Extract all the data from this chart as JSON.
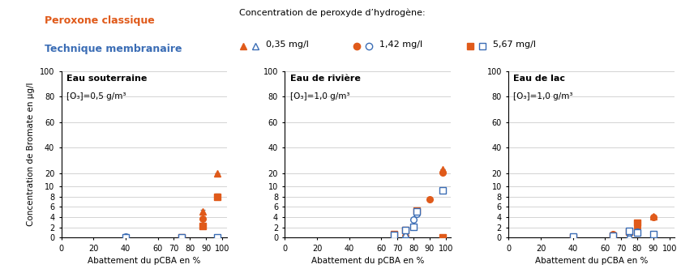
{
  "panels": [
    {
      "title": "Eau souterraine",
      "subtitle": "[O₃]=0,5 g/m³",
      "data": {
        "orange_triangle": {
          "x": [
            75,
            88,
            97
          ],
          "y": [
            0.05,
            5.1,
            20.0
          ],
          "yerr": [
            0,
            0.35,
            0
          ]
        },
        "orange_circle": {
          "x": [
            75,
            88
          ],
          "y": [
            0.05,
            3.6
          ],
          "yerr": [
            0,
            0
          ]
        },
        "orange_square": {
          "x": [
            75,
            88,
            97
          ],
          "y": [
            0.05,
            2.2,
            8.0
          ],
          "yerr": [
            0.05,
            0.25,
            0.55
          ]
        },
        "blue_triangle": {
          "x": [
            40,
            75
          ],
          "y": [
            0.08,
            0.05
          ],
          "yerr": [
            0,
            0
          ]
        },
        "blue_circle": {
          "x": [
            40,
            75
          ],
          "y": [
            0.12,
            0.05
          ],
          "yerr": [
            0,
            0
          ]
        },
        "blue_square": {
          "x": [
            40,
            75,
            97
          ],
          "y": [
            0.05,
            0.05,
            0.1
          ],
          "yerr": [
            0,
            0,
            0
          ]
        }
      }
    },
    {
      "title": "Eau de rivière",
      "subtitle": "[O₃]=1,0 g/m³",
      "data": {
        "orange_triangle": {
          "x": [
            68,
            75,
            98
          ],
          "y": [
            0.35,
            1.0,
            23.0
          ],
          "yerr": [
            0,
            0,
            0
          ]
        },
        "orange_circle": {
          "x": [
            68,
            80,
            90,
            98
          ],
          "y": [
            0.5,
            2.1,
            7.5,
            21.0
          ],
          "yerr": [
            0,
            0,
            0,
            0
          ]
        },
        "orange_square": {
          "x": [
            68,
            75,
            82,
            98
          ],
          "y": [
            0.6,
            1.4,
            5.2,
            0
          ],
          "yerr": [
            0.1,
            0.2,
            0.35,
            0
          ]
        },
        "blue_triangle": {
          "x": [
            68,
            75
          ],
          "y": [
            0.25,
            0.7
          ],
          "yerr": [
            0,
            0
          ]
        },
        "blue_circle": {
          "x": [
            68,
            75,
            80,
            82,
            98
          ],
          "y": [
            0.3,
            1.5,
            3.5,
            4.6,
            9.2
          ],
          "yerr": [
            0.05,
            0.2,
            0,
            0,
            0.55
          ]
        },
        "blue_square": {
          "x": [
            68,
            75,
            80,
            82,
            98
          ],
          "y": [
            0.5,
            1.5,
            2.1,
            5.1,
            9.2
          ],
          "yerr": [
            0.15,
            0.3,
            0.3,
            0.3,
            0.55
          ]
        }
      }
    },
    {
      "title": "Eau de lac",
      "subtitle": "[O₃]=1,0 g/m³",
      "data": {
        "orange_triangle": {
          "x": [
            40,
            65,
            90
          ],
          "y": [
            0.05,
            0.5,
            4.1
          ],
          "yerr": [
            0,
            0,
            0
          ]
        },
        "orange_circle": {
          "x": [
            40,
            65,
            80,
            90
          ],
          "y": [
            0.1,
            0.7,
            2.0,
            4.0
          ],
          "yerr": [
            0,
            0,
            0,
            0
          ]
        },
        "orange_square": {
          "x": [
            40,
            65,
            75,
            80
          ],
          "y": [
            0.1,
            0.4,
            1.1,
            2.9
          ],
          "yerr": [
            0,
            0,
            0.1,
            0.2
          ]
        },
        "blue_triangle": {
          "x": [
            40,
            65,
            75
          ],
          "y": [
            0.05,
            0.05,
            0.4
          ],
          "yerr": [
            0,
            0,
            0
          ]
        },
        "blue_circle": {
          "x": [
            40,
            65,
            75,
            80,
            90
          ],
          "y": [
            0.1,
            0.3,
            0.9,
            1.1,
            0.65
          ],
          "yerr": [
            0,
            0,
            0,
            0.1,
            0
          ]
        },
        "blue_square": {
          "x": [
            40,
            65,
            75,
            80,
            90
          ],
          "y": [
            0.15,
            0.35,
            1.25,
            1.05,
            0.65
          ],
          "yerr": [
            0,
            0,
            0.1,
            0.1,
            0.05
          ]
        }
      }
    }
  ],
  "orange_color": "#E05A1A",
  "blue_color": "#3B6DB5",
  "ytick_data": [
    0,
    2,
    4,
    6,
    8,
    10,
    20,
    40,
    60,
    80,
    100
  ],
  "xticks": [
    0,
    20,
    40,
    60,
    70,
    80,
    90,
    100
  ],
  "xlabel": "Abattement du pCBA en %",
  "ylabel": "Concentration de Bromate en µg/l",
  "legend_left_title1": "Peroxone classique",
  "legend_left_title2": "Technique membranaire",
  "legend_right_title": "Concentration de peroxyde d’hydrogène:",
  "legend_conc": [
    "0,35 mg/l",
    "1,42 mg/l",
    "5,67 mg/l"
  ]
}
